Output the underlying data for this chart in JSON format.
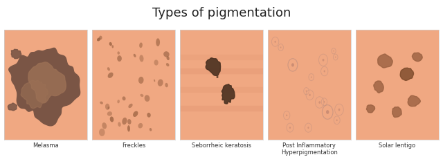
{
  "title": "Types of pigmentation",
  "title_fontsize": 13,
  "background_color": "#ffffff",
  "skin_color": "#f0a882",
  "panel_border_color": "#d0d0d0",
  "labels": [
    "Melasma",
    "Freckles",
    "Seborrheic keratosis",
    "Post Inflammatory\nHyperpigmentation",
    "Solar lentigo"
  ],
  "label_fontsize": 6.0,
  "melasma_dark": "#7a5545",
  "melasma_medium": "#9b7055",
  "freckle_color": "#a06848",
  "freckle_color2": "#8a5535",
  "seb_ker_color": "#4a3020",
  "seb_ker_color2": "#6a4530",
  "pih_ring_color": "#c09080",
  "pih_dot_color": "#b07868",
  "solar_lentigo_color": "#9a6040",
  "solar_lentigo_color2": "#7a4828"
}
